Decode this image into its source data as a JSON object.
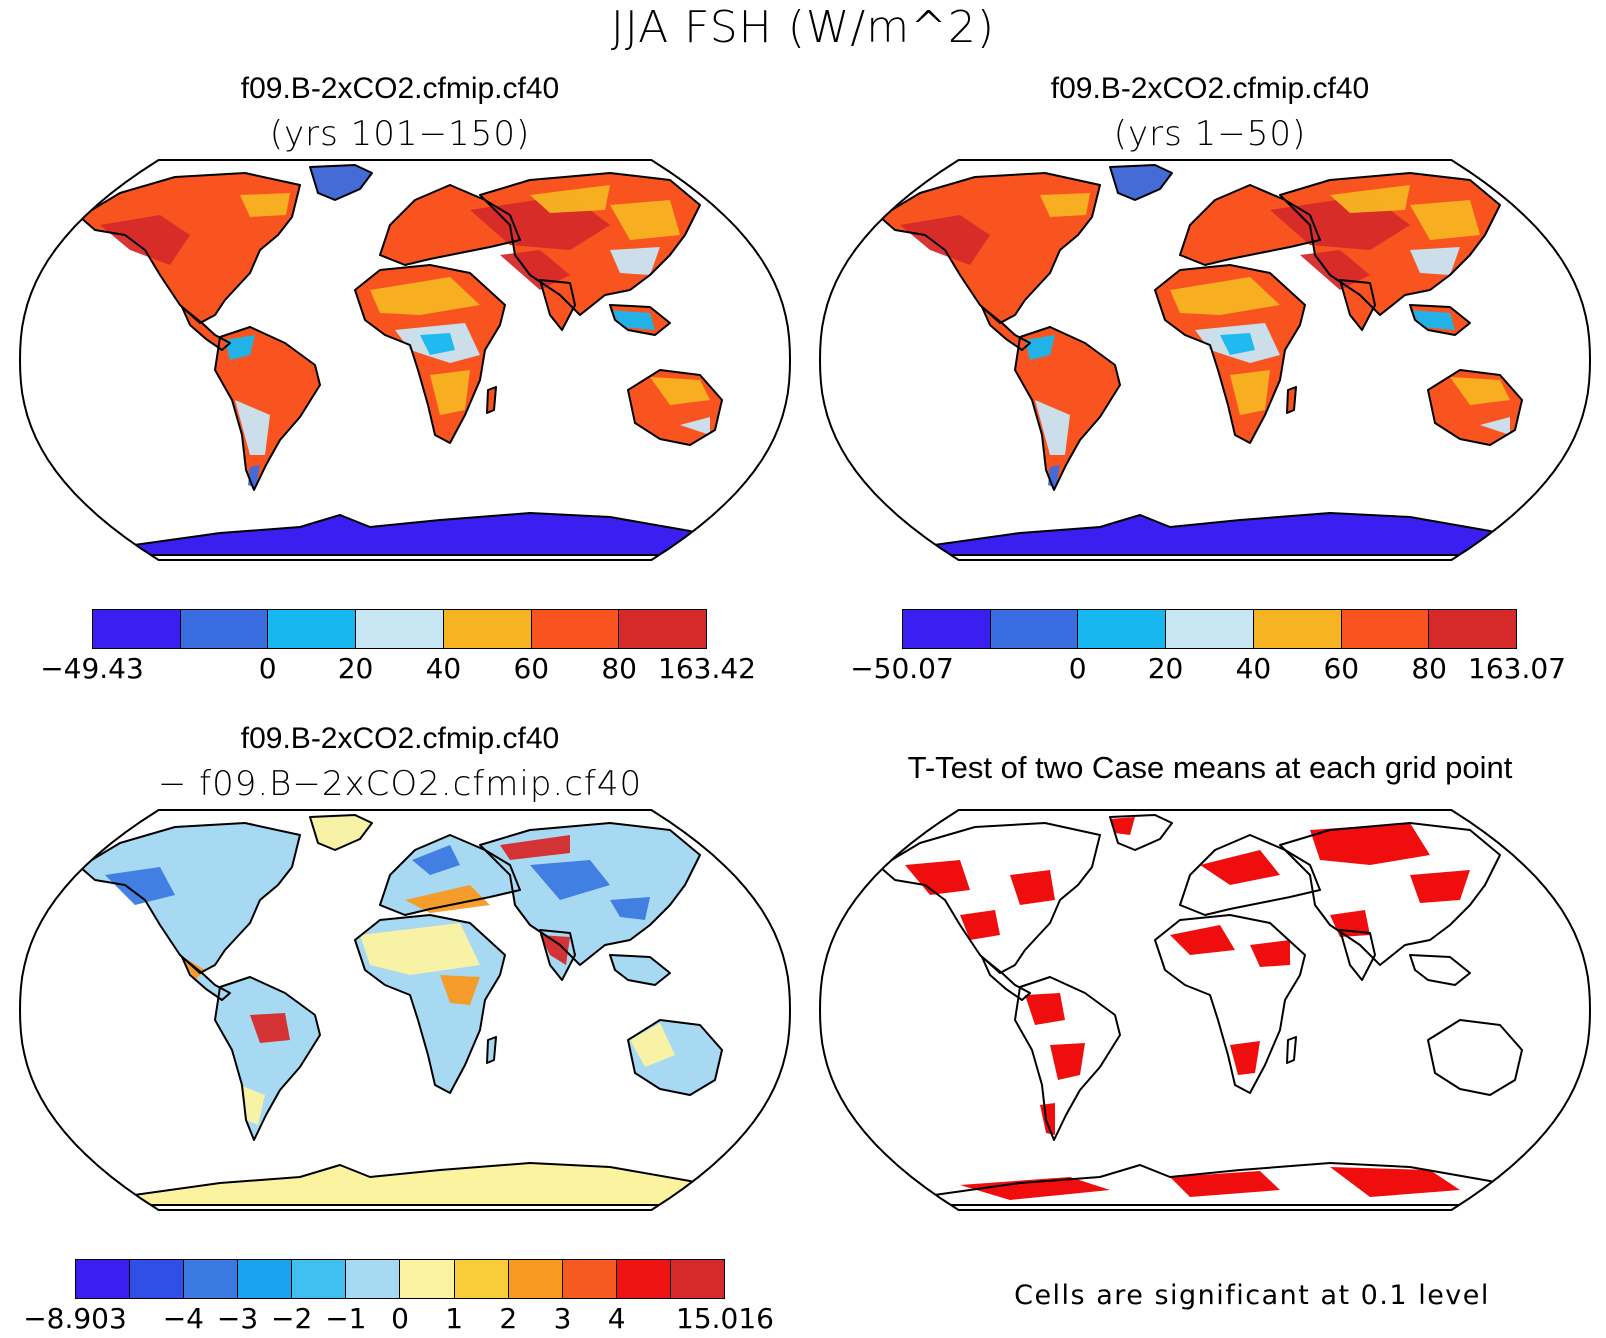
{
  "figure": {
    "title": "JJA FSH (W/m^2)"
  },
  "panels": [
    {
      "id": "case1",
      "title": "f09.B-2xCO2.cfmip.cf40",
      "subtitle": "(yrs 101−150)",
      "colorbar": {
        "colors": [
          "#3b1ef0",
          "#3a6de0",
          "#17b7f0",
          "#c8e6f4",
          "#f7b422",
          "#f95320",
          "#d62a2a"
        ],
        "tick_labels": [
          "−49.43",
          "0",
          "20",
          "40",
          "60",
          "80",
          "163.42"
        ],
        "tick_edge_index": [
          0,
          2,
          3,
          4,
          5,
          6,
          7
        ]
      }
    },
    {
      "id": "case2",
      "title": "f09.B-2xCO2.cfmip.cf40",
      "subtitle": "(yrs 1−50)",
      "colorbar": {
        "colors": [
          "#3b1ef0",
          "#3a6de0",
          "#17b7f0",
          "#c8e6f4",
          "#f7b422",
          "#f95320",
          "#d62a2a"
        ],
        "tick_labels": [
          "−50.07",
          "0",
          "20",
          "40",
          "60",
          "80",
          "163.07"
        ],
        "tick_edge_index": [
          0,
          2,
          3,
          4,
          5,
          6,
          7
        ]
      }
    },
    {
      "id": "diff",
      "title": "f09.B-2xCO2.cfmip.cf40",
      "subtitle": "− f09.B−2xCO2.cfmip.cf40",
      "colorbar": {
        "colors": [
          "#3b1ef0",
          "#2f4fe6",
          "#3b7ae0",
          "#1aa3ee",
          "#40c0f0",
          "#a8d9f2",
          "#fbf3a0",
          "#f9cc3a",
          "#f89a22",
          "#f65a1e",
          "#ee1414",
          "#d62a2a"
        ],
        "tick_labels": [
          "−8.903",
          "−4",
          "−3",
          "−2",
          "−1",
          "0",
          "1",
          "2",
          "3",
          "4",
          "15.016"
        ],
        "tick_edge_index": [
          0,
          2,
          3,
          4,
          5,
          6,
          7,
          8,
          9,
          10,
          12
        ]
      }
    },
    {
      "id": "ttest",
      "title": "T-Test of two Case means at each grid point",
      "note": "Cells are significant at 0.1 level"
    }
  ],
  "map_fill_colors": {
    "case": {
      "dominant": "#f95320",
      "hot": "#d62a2a",
      "warm": "#f7b422",
      "mild": "#c8e6f4",
      "cool": "#17b7f0",
      "cold": "#3a6de0",
      "antarctica": "#3b1ef0"
    },
    "diff": {
      "dominant": "#a8d9f2",
      "pos": "#f89a22",
      "neg": "#3b7ae0",
      "yellow": "#fbf3a0",
      "red": "#d62a2a",
      "antarctica": "#fbf3a0"
    },
    "ttest": {
      "significant": "#ee0000"
    }
  }
}
